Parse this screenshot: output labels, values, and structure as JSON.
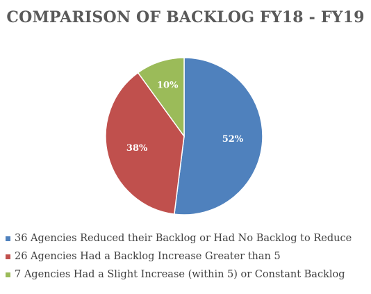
{
  "chart_data": {
    "type": "pie",
    "title": "COMPARISON OF BACKLOG FY18 - FY19",
    "slices": [
      {
        "label": "36 Agencies Reduced their Backlog or Had No Backlog to Reduce",
        "value": 52,
        "data_label": "52%",
        "color": "#4f81bd"
      },
      {
        "label": "26 Agencies Had a Backlog Increase Greater than 5",
        "value": 38,
        "data_label": "38%",
        "color": "#c0504d"
      },
      {
        "label": "7 Agencies Had a Slight Increase (within 5) or Constant Backlog",
        "value": 10,
        "data_label": "10%",
        "color": "#9bbb59"
      }
    ],
    "legend_position": "bottom"
  }
}
